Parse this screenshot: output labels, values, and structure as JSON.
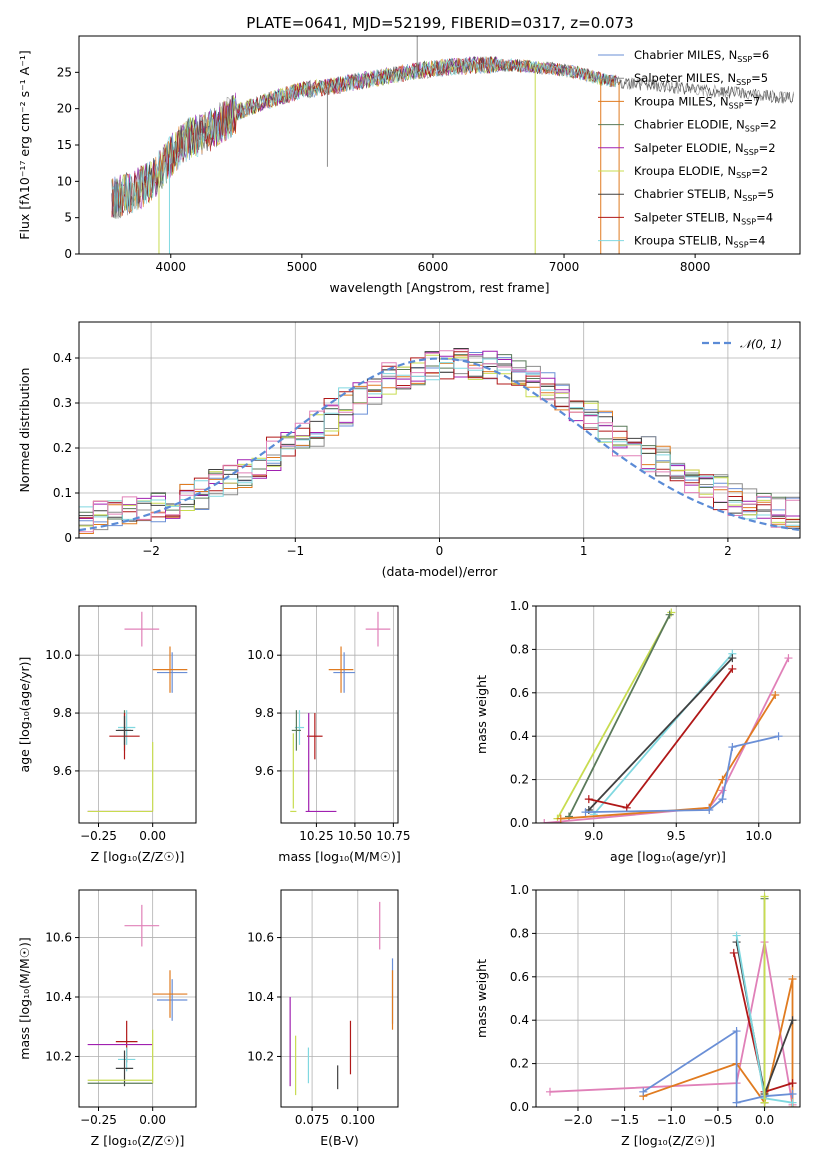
{
  "figure_title": "PLATE=0641, MJD=52199, FIBERID=0317, z=0.073",
  "colors": {
    "Chabrier MILES": "#6a8fd6",
    "Salpeter MILES": "#8c8c8c",
    "Kroupa MILES": "#e07b20",
    "Chabrier ELODIE": "#5a7a5a",
    "Salpeter ELODIE": "#a020b0",
    "Kroupa ELODIE": "#c8dc50",
    "Chabrier STELIB": "#404040",
    "Salpeter STELIB": "#b01818",
    "Kroupa STELIB": "#80d8e0",
    "extra_pink": "#e080b8"
  },
  "chart_data": [
    {
      "id": "spectrum",
      "type": "line",
      "title": "PLATE=0641, MJD=52199, FIBERID=0317, z=0.073",
      "xlabel": "wavelength [Angstrom, rest frame]",
      "ylabel": "Flux [fλ10⁻¹⁷ erg cm⁻² s⁻¹ A⁻¹]",
      "xlim": [
        3300,
        8800
      ],
      "ylim": [
        0,
        30
      ],
      "xticks": [
        4000,
        5000,
        6000,
        7000,
        8000
      ],
      "yticks": [
        0,
        5,
        10,
        15,
        20,
        25
      ],
      "legend_position": "top-right",
      "grid": false,
      "series": [
        {
          "name": "Chabrier MILES, N_SSP=6",
          "color": "#6a8fd6"
        },
        {
          "name": "Salpeter MILES, N_SSP=5",
          "color": "#8c8c8c"
        },
        {
          "name": "Kroupa MILES, N_SSP=7",
          "color": "#e07b20"
        },
        {
          "name": "Chabrier ELODIE, N_SSP=2",
          "color": "#5a7a5a"
        },
        {
          "name": "Salpeter ELODIE, N_SSP=2",
          "color": "#a020b0"
        },
        {
          "name": "Kroupa ELODIE, N_SSP=2",
          "color": "#c8dc50"
        },
        {
          "name": "Chabrier STELIB, N_SSP=5",
          "color": "#404040"
        },
        {
          "name": "Salpeter STELIB, N_SSP=4",
          "color": "#b01818"
        },
        {
          "name": "Kroupa STELIB, N_SSP=4",
          "color": "#80d8e0"
        }
      ],
      "continuum": {
        "x": [
          3550,
          3700,
          3850,
          4000,
          4100,
          4300,
          4500,
          4800,
          5000,
          5200,
          5500,
          5800,
          6000,
          6300,
          6600,
          6900,
          7100,
          7300,
          7500,
          7800,
          8100,
          8400,
          8700
        ],
        "y": [
          7.5,
          8.5,
          10.0,
          13.5,
          15.5,
          17.0,
          19.5,
          21.5,
          22.5,
          23.0,
          24.0,
          25.0,
          25.5,
          26.0,
          26.0,
          25.5,
          25.0,
          24.0,
          23.5,
          23.0,
          22.5,
          22.0,
          21.5
        ]
      },
      "spikes": [
        {
          "x": 3910,
          "y": 0
        },
        {
          "x": 3990,
          "y": 0
        },
        {
          "x": 5195,
          "y": 12
        },
        {
          "x": 5880,
          "y": 30
        },
        {
          "x": 6780,
          "y": 0
        },
        {
          "x": 7280,
          "y": 0
        },
        {
          "x": 7420,
          "y": 0
        }
      ]
    },
    {
      "id": "residuals",
      "type": "step",
      "xlabel": "(data-model)/error",
      "ylabel": "Normed distribution",
      "xlim": [
        -2.5,
        2.5
      ],
      "ylim": [
        0,
        0.48
      ],
      "xticks": [
        -2,
        -1,
        0,
        1,
        2
      ],
      "yticks": [
        0.0,
        0.1,
        0.2,
        0.3,
        0.4
      ],
      "grid": true,
      "legend_position": "top-right",
      "gaussian_label": "𝒩(0, 1)",
      "gaussian_color": "#5b8bd6",
      "histogram_colors": [
        "#6a8fd6",
        "#8c8c8c",
        "#e07b20",
        "#5a7a5a",
        "#a020b0",
        "#c8dc50",
        "#404040",
        "#b01818",
        "#80d8e0",
        "#e080b8"
      ],
      "bin_width": 0.1
    },
    {
      "id": "age_vs_Z",
      "type": "errorbar",
      "xlabel": "Z [log₁₀(Z/Z☉)]",
      "ylabel": "age  [log₁₀(age/yr)]",
      "xlim": [
        -0.34,
        0.2
      ],
      "ylim": [
        9.42,
        10.17
      ],
      "xticks": [
        -0.25,
        0.0
      ],
      "xticklabels": [
        "−0.25",
        "0.00"
      ],
      "yticks": [
        9.6,
        9.8,
        10.0
      ],
      "yticklabels": [
        "9.6",
        "9.8",
        "10.0"
      ],
      "grid": true,
      "points": [
        {
          "x": -0.05,
          "xerr": 0.08,
          "y": 10.09,
          "yerr": 0.06,
          "color": "#e080b8"
        },
        {
          "x": 0.09,
          "xerr": 0.07,
          "y": 9.94,
          "yerr": 0.07,
          "color": "#6a8fd6"
        },
        {
          "x": 0.08,
          "xerr": 0.08,
          "y": 9.95,
          "yerr": 0.08,
          "color": "#e07b20"
        },
        {
          "x": -0.12,
          "xerr": 0.04,
          "y": 9.75,
          "yerr": 0.06,
          "color": "#80d8e0"
        },
        {
          "x": -0.13,
          "xerr": 0.03,
          "y": 9.74,
          "yerr": 0.07,
          "color": "#5a7a5a"
        },
        {
          "x": -0.13,
          "xerr": 0.07,
          "y": 9.72,
          "yerr": 0.08,
          "color": "#b01818"
        },
        {
          "x": -0.13,
          "xerr": 0.04,
          "y": 9.74,
          "yerr": 0.05,
          "color": "#404040"
        },
        {
          "x": -0.15,
          "xerr": 0.15,
          "y": 9.46,
          "yerr": 0.0,
          "color": "#a020b0"
        },
        {
          "x": -0.15,
          "xerr": 0.15,
          "y": 9.46,
          "yerr": 0.0,
          "color": "#c8dc50"
        },
        {
          "x": 0.0,
          "xerr": 0.0,
          "y": 9.58,
          "yerr": 0.12,
          "color": "#c8dc50"
        }
      ]
    },
    {
      "id": "age_vs_mass",
      "type": "errorbar",
      "xlabel": "mass [log₁₀(M/M☉)]",
      "ylabel": "",
      "xlim": [
        10.02,
        10.78
      ],
      "ylim": [
        9.42,
        10.17
      ],
      "xticks": [
        10.25,
        10.5,
        10.75
      ],
      "xticklabels": [
        "10.25",
        "10.50",
        "10.75"
      ],
      "yticks": [
        9.6,
        9.8,
        10.0
      ],
      "yticklabels": [
        "9.6",
        "9.8",
        "10.0"
      ],
      "grid": true,
      "points": [
        {
          "x": 10.65,
          "xerr": 0.08,
          "y": 10.09,
          "yerr": 0.06,
          "color": "#e080b8"
        },
        {
          "x": 10.43,
          "xerr": 0.07,
          "y": 9.94,
          "yerr": 0.07,
          "color": "#6a8fd6"
        },
        {
          "x": 10.41,
          "xerr": 0.08,
          "y": 9.95,
          "yerr": 0.08,
          "color": "#e07b20"
        },
        {
          "x": 10.14,
          "xerr": 0.03,
          "y": 9.75,
          "yerr": 0.06,
          "color": "#80d8e0"
        },
        {
          "x": 10.12,
          "xerr": 0.03,
          "y": 9.74,
          "yerr": 0.07,
          "color": "#5a7a5a"
        },
        {
          "x": 10.24,
          "xerr": 0.05,
          "y": 9.72,
          "yerr": 0.08,
          "color": "#b01818"
        },
        {
          "x": 10.2,
          "xerr": 0.0,
          "y": 9.63,
          "yerr": 0.17,
          "color": "#a020b0"
        },
        {
          "x": 10.28,
          "xerr": 0.1,
          "y": 9.46,
          "yerr": 0.0,
          "color": "#a020b0"
        },
        {
          "x": 10.1,
          "xerr": 0.02,
          "y": 9.46,
          "yerr": 0.0,
          "color": "#c8dc50"
        },
        {
          "x": 10.1,
          "xerr": 0.0,
          "y": 9.6,
          "yerr": 0.13,
          "color": "#c8dc50"
        }
      ]
    },
    {
      "id": "massweight_vs_age",
      "type": "line",
      "xlabel": "age  [log₁₀(age/yr)]",
      "ylabel": "mass weight",
      "xlim": [
        8.65,
        10.25
      ],
      "ylim": [
        0,
        1
      ],
      "xticks": [
        9.0,
        9.5,
        10.0
      ],
      "xticklabels": [
        "9.0",
        "9.5",
        "10.0"
      ],
      "yticks": [
        0.0,
        0.2,
        0.4,
        0.6,
        0.8,
        1.0
      ],
      "yticklabels": [
        "0.0",
        "0.2",
        "0.4",
        "0.6",
        "0.8",
        "1.0"
      ],
      "grid": true,
      "series": [
        {
          "color": "#c8dc50",
          "x": [
            8.78,
            9.47
          ],
          "y": [
            0.02,
            0.97
          ]
        },
        {
          "color": "#5a7a5a",
          "x": [
            8.85,
            9.46
          ],
          "y": [
            0.03,
            0.96
          ]
        },
        {
          "color": "#80d8e0",
          "x": [
            9.0,
            9.84
          ],
          "y": [
            0.04,
            0.78
          ]
        },
        {
          "color": "#404040",
          "x": [
            8.97,
            9.84
          ],
          "y": [
            0.06,
            0.76
          ]
        },
        {
          "color": "#b01818",
          "x": [
            8.97,
            9.2,
            9.84
          ],
          "y": [
            0.11,
            0.07,
            0.71
          ]
        },
        {
          "color": "#e080b8",
          "x": [
            8.7,
            9.7,
            9.78,
            10.18
          ],
          "y": [
            0.0,
            0.07,
            0.15,
            0.76
          ]
        },
        {
          "color": "#e07b20",
          "x": [
            8.8,
            9.7,
            9.78,
            10.1
          ],
          "y": [
            0.02,
            0.07,
            0.2,
            0.59
          ]
        },
        {
          "color": "#6a8fd6",
          "x": [
            8.95,
            9.7,
            9.78,
            9.84,
            10.12
          ],
          "y": [
            0.05,
            0.06,
            0.11,
            0.35,
            0.4
          ]
        }
      ]
    },
    {
      "id": "mass_vs_Z",
      "type": "errorbar",
      "xlabel": "Z [log₁₀(Z/Z☉)]",
      "ylabel": "mass [log₁₀(M/M☉)]",
      "xlim": [
        -0.34,
        0.2
      ],
      "ylim": [
        10.03,
        10.76
      ],
      "xticks": [
        -0.25,
        0.0
      ],
      "xticklabels": [
        "−0.25",
        "0.00"
      ],
      "yticks": [
        10.2,
        10.4,
        10.6
      ],
      "yticklabels": [
        "10.2",
        "10.4",
        "10.6"
      ],
      "grid": true,
      "points": [
        {
          "x": -0.05,
          "xerr": 0.08,
          "y": 10.64,
          "yerr": 0.07,
          "color": "#e080b8"
        },
        {
          "x": 0.09,
          "xerr": 0.07,
          "y": 10.39,
          "yerr": 0.07,
          "color": "#6a8fd6"
        },
        {
          "x": 0.08,
          "xerr": 0.08,
          "y": 10.41,
          "yerr": 0.08,
          "color": "#e07b20"
        },
        {
          "x": -0.12,
          "xerr": 0.05,
          "y": 10.25,
          "yerr": 0.07,
          "color": "#b01818"
        },
        {
          "x": -0.15,
          "xerr": 0.15,
          "y": 10.24,
          "yerr": 0.0,
          "color": "#a020b0"
        },
        {
          "x": -0.12,
          "xerr": 0.04,
          "y": 10.19,
          "yerr": 0.04,
          "color": "#80d8e0"
        },
        {
          "x": -0.13,
          "xerr": 0.04,
          "y": 10.16,
          "yerr": 0.06,
          "color": "#404040"
        },
        {
          "x": -0.15,
          "xerr": 0.15,
          "y": 10.12,
          "yerr": 0.0,
          "color": "#c8dc50"
        },
        {
          "x": -0.15,
          "xerr": 0.15,
          "y": 10.11,
          "yerr": 0.0,
          "color": "#5a7a5a"
        },
        {
          "x": 0.0,
          "xerr": 0.0,
          "y": 10.2,
          "yerr": 0.09,
          "color": "#c8dc50"
        }
      ]
    },
    {
      "id": "mass_vs_EBV",
      "type": "errorbar",
      "xlabel": "E(B-V)",
      "ylabel": "",
      "xlim": [
        0.058,
        0.122
      ],
      "ylim": [
        10.03,
        10.76
      ],
      "xticks": [
        0.075,
        0.1
      ],
      "xticklabels": [
        "0.075",
        "0.100"
      ],
      "yticks": [
        10.2,
        10.4,
        10.6
      ],
      "yticklabels": [
        "10.2",
        "10.4",
        "10.6"
      ],
      "grid": true,
      "points": [
        {
          "x": 0.112,
          "xerr": 0.0,
          "y": 10.64,
          "yerr": 0.08,
          "color": "#e080b8"
        },
        {
          "x": 0.119,
          "xerr": 0.0,
          "y": 10.42,
          "yerr": 0.11,
          "color": "#6a8fd6"
        },
        {
          "x": 0.119,
          "xerr": 0.0,
          "y": 10.39,
          "yerr": 0.1,
          "color": "#e07b20"
        },
        {
          "x": 0.063,
          "xerr": 0.0,
          "y": 10.25,
          "yerr": 0.15,
          "color": "#a020b0"
        },
        {
          "x": 0.066,
          "xerr": 0.0,
          "y": 10.17,
          "yerr": 0.1,
          "color": "#c8dc50"
        },
        {
          "x": 0.073,
          "xerr": 0.0,
          "y": 10.17,
          "yerr": 0.06,
          "color": "#80d8e0"
        },
        {
          "x": 0.089,
          "xerr": 0.0,
          "y": 10.13,
          "yerr": 0.04,
          "color": "#404040"
        },
        {
          "x": 0.096,
          "xerr": 0.0,
          "y": 10.23,
          "yerr": 0.09,
          "color": "#b01818"
        }
      ]
    },
    {
      "id": "massweight_vs_Z",
      "type": "line",
      "xlabel": "Z [log₁₀(Z/Z☉)]",
      "ylabel": "mass weight",
      "xlim": [
        -2.45,
        0.38
      ],
      "ylim": [
        0,
        1
      ],
      "xticks": [
        -2.0,
        -1.5,
        -1.0,
        -0.5,
        0.0
      ],
      "xticklabels": [
        "−2.0",
        "−1.5",
        "−1.0",
        "−0.5",
        "0.0"
      ],
      "yticks": [
        0.0,
        0.2,
        0.4,
        0.6,
        0.8,
        1.0
      ],
      "yticklabels": [
        "0.0",
        "0.2",
        "0.4",
        "0.6",
        "0.8",
        "1.0"
      ],
      "grid": true,
      "series": [
        {
          "color": "#e080b8",
          "x": [
            -2.3,
            -0.3,
            0.0,
            0.3
          ],
          "y": [
            0.07,
            0.11,
            0.76,
            0.01
          ]
        },
        {
          "color": "#e07b20",
          "x": [
            -1.3,
            -0.3,
            0.0,
            0.3,
            0.3
          ],
          "y": [
            0.05,
            0.2,
            0.02,
            0.59,
            0.0
          ]
        },
        {
          "color": "#6a8fd6",
          "x": [
            -1.3,
            -0.3,
            -0.3,
            0.0,
            0.3
          ],
          "y": [
            0.07,
            0.35,
            0.02,
            0.05,
            0.06
          ]
        },
        {
          "color": "#b01818",
          "x": [
            -0.33,
            0.0,
            0.3
          ],
          "y": [
            0.71,
            0.07,
            0.11
          ]
        },
        {
          "color": "#404040",
          "x": [
            -0.3,
            0.0,
            0.3
          ],
          "y": [
            0.76,
            0.06,
            0.4
          ]
        },
        {
          "color": "#80d8e0",
          "x": [
            -0.3,
            0.0,
            0.3
          ],
          "y": [
            0.79,
            0.04,
            0.02
          ]
        },
        {
          "color": "#5a7a5a",
          "x": [
            0.0,
            0.0
          ],
          "y": [
            0.96,
            0.02
          ]
        },
        {
          "color": "#c8dc50",
          "x": [
            0.0,
            0.0
          ],
          "y": [
            0.97,
            0.02
          ]
        }
      ]
    }
  ]
}
